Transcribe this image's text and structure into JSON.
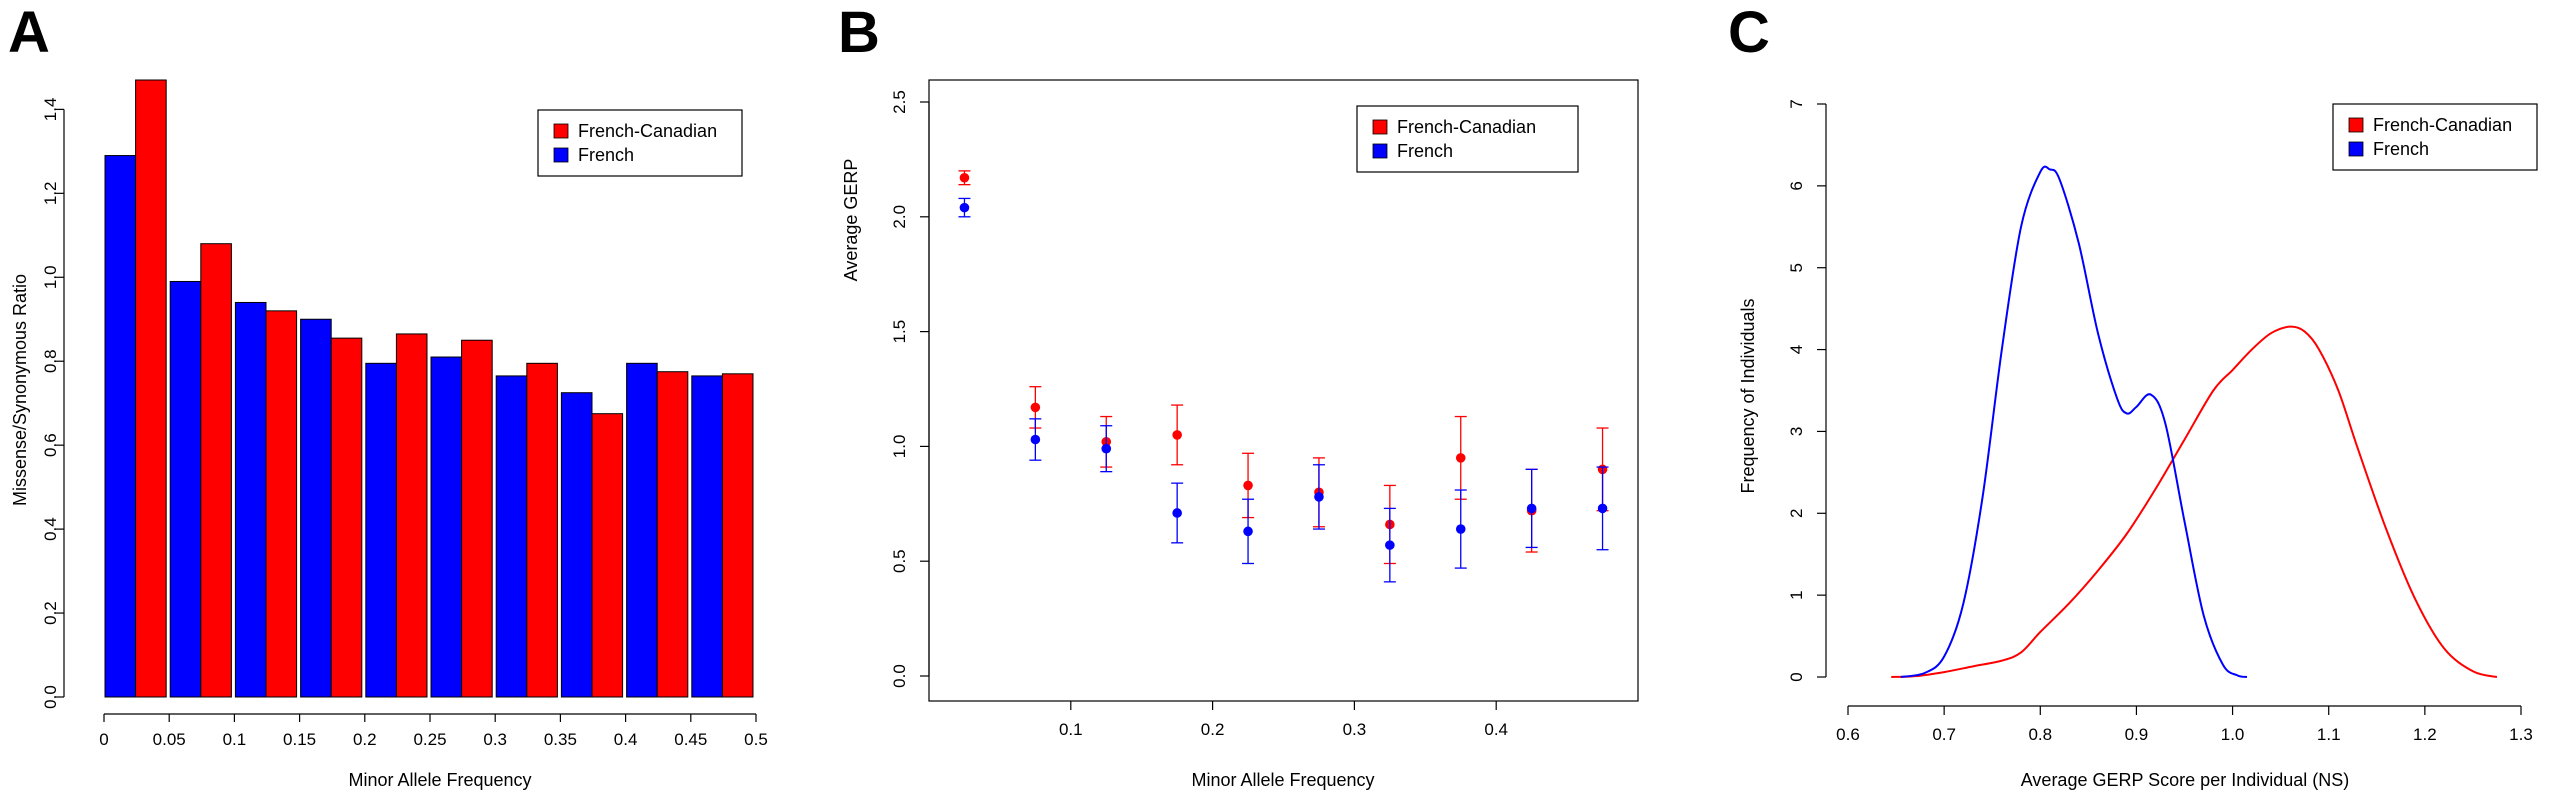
{
  "figure": {
    "panels": [
      "A",
      "B",
      "C"
    ]
  },
  "chart_data": [
    {
      "panel": "A",
      "type": "bar",
      "xlabel": "Minor Allele Frequency",
      "ylabel": "Missense/Synonymous Ratio",
      "categories": [
        "0-0.05",
        "0.05-0.1",
        "0.1-0.15",
        "0.15-0.2",
        "0.2-0.25",
        "0.25-0.3",
        "0.3-0.35",
        "0.35-0.4",
        "0.4-0.45",
        "0.45-0.5"
      ],
      "series": [
        {
          "name": "French",
          "color": "#0000ff",
          "values": [
            1.29,
            0.99,
            0.94,
            0.9,
            0.795,
            0.81,
            0.765,
            0.725,
            0.795,
            0.765
          ]
        },
        {
          "name": "French-Canadian",
          "color": "#ff0000",
          "values": [
            1.47,
            1.08,
            0.92,
            0.855,
            0.865,
            0.85,
            0.795,
            0.675,
            0.775,
            0.77
          ]
        }
      ],
      "legend": [
        "French-Canadian",
        "French"
      ],
      "legend_position": "top-right",
      "xlim": [
        0,
        0.5
      ],
      "ylim": [
        0,
        1.47
      ],
      "xticks": [
        "0",
        "0.05",
        "0.1",
        "0.15",
        "0.2",
        "0.25",
        "0.3",
        "0.35",
        "0.4",
        "0.45",
        "0.5"
      ],
      "yticks": [
        "0.0",
        "0.2",
        "0.4",
        "0.6",
        "0.8",
        "1.0",
        "1.2",
        "1.4"
      ]
    },
    {
      "panel": "B",
      "type": "scatter",
      "xlabel": "Minor Allele Frequency",
      "ylabel": "Average GERP",
      "x": [
        0.025,
        0.075,
        0.125,
        0.175,
        0.225,
        0.275,
        0.325,
        0.375,
        0.425,
        0.475
      ],
      "series": [
        {
          "name": "French-Canadian",
          "color": "#ff0000",
          "values": [
            2.17,
            1.17,
            1.02,
            1.05,
            0.83,
            0.8,
            0.66,
            0.95,
            0.72,
            0.9
          ],
          "err": [
            0.03,
            0.09,
            0.11,
            0.13,
            0.14,
            0.15,
            0.17,
            0.18,
            0.18,
            0.18
          ]
        },
        {
          "name": "French",
          "color": "#0000ff",
          "values": [
            2.04,
            1.03,
            0.99,
            0.71,
            0.63,
            0.78,
            0.57,
            0.64,
            0.73,
            0.73
          ],
          "err": [
            0.04,
            0.09,
            0.1,
            0.13,
            0.14,
            0.14,
            0.16,
            0.17,
            0.17,
            0.18
          ]
        }
      ],
      "legend": [
        "French-Canadian",
        "French"
      ],
      "legend_position": "top-right",
      "xlim": [
        0,
        0.5
      ],
      "ylim": [
        0,
        2.5
      ],
      "xticks": [
        "0.1",
        "0.2",
        "0.3",
        "0.4"
      ],
      "yticks": [
        "0.0",
        "0.5",
        "1.0",
        "1.5",
        "2.0",
        "2.5"
      ]
    },
    {
      "panel": "C",
      "type": "line",
      "xlabel": "Average GERP Score per Individual (NS)",
      "ylabel": "Frequency of Individuals",
      "series": [
        {
          "name": "French-Canadian",
          "color": "#ff0000",
          "x": [
            0.645,
            0.67,
            0.7,
            0.73,
            0.76,
            0.78,
            0.8,
            0.83,
            0.86,
            0.89,
            0.92,
            0.95,
            0.98,
            1.0,
            1.02,
            1.04,
            1.06,
            1.075,
            1.09,
            1.11,
            1.13,
            1.16,
            1.19,
            1.22,
            1.25,
            1.275
          ],
          "y": [
            0.0,
            0.01,
            0.06,
            0.13,
            0.2,
            0.3,
            0.55,
            0.9,
            1.3,
            1.75,
            2.3,
            2.9,
            3.5,
            3.75,
            4.0,
            4.2,
            4.28,
            4.22,
            4.0,
            3.5,
            2.8,
            1.8,
            0.95,
            0.35,
            0.07,
            0.0
          ]
        },
        {
          "name": "French",
          "color": "#0000ff",
          "x": [
            0.655,
            0.68,
            0.7,
            0.72,
            0.74,
            0.76,
            0.78,
            0.8,
            0.81,
            0.82,
            0.84,
            0.86,
            0.88,
            0.89,
            0.9,
            0.915,
            0.93,
            0.95,
            0.97,
            0.99,
            1.005,
            1.015
          ],
          "y": [
            0.0,
            0.05,
            0.25,
            0.9,
            2.2,
            4.0,
            5.5,
            6.17,
            6.2,
            6.08,
            5.3,
            4.2,
            3.4,
            3.22,
            3.3,
            3.45,
            3.1,
            1.9,
            0.75,
            0.15,
            0.02,
            0.0
          ]
        }
      ],
      "legend": [
        "French-Canadian",
        "French"
      ],
      "legend_position": "top-right",
      "xlim": [
        0.6,
        1.3
      ],
      "ylim": [
        0,
        7
      ],
      "xticks": [
        "0.6",
        "0.7",
        "0.8",
        "0.9",
        "1.0",
        "1.1",
        "1.2",
        "1.3"
      ],
      "yticks": [
        "0",
        "1",
        "2",
        "3",
        "4",
        "5",
        "6",
        "7"
      ]
    }
  ]
}
